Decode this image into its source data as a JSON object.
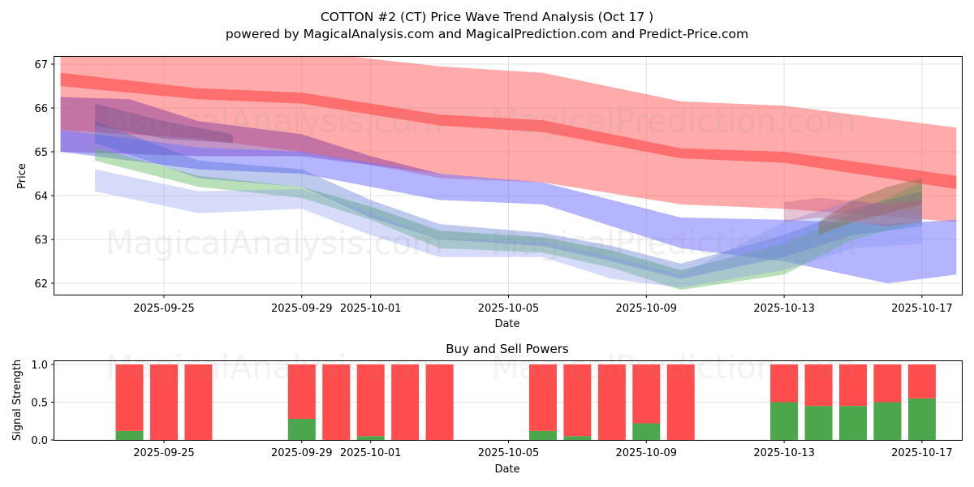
{
  "title": "COTTON #2 (CT) Price Wave Trend Analysis (Oct 17 )",
  "subtitle": "powered by MagicalAnalysis.com and MagicalPrediction.com and Predict-Price.com",
  "watermarks": [
    "MagicalAnalysis.com",
    "MagicalPrediction.com"
  ],
  "chart_data": [
    {
      "type": "area",
      "title": "",
      "xlabel": "Date",
      "ylabel": "Price",
      "ylim": [
        61.75,
        67.2
      ],
      "xlim": [
        "2025-09-21.7",
        "2025-10-18.2"
      ],
      "yticks": [
        62,
        63,
        64,
        65,
        66,
        67
      ],
      "xticks": [
        "2025-09-25",
        "2025-09-29",
        "2025-10-01",
        "2025-10-05",
        "2025-10-09",
        "2025-10-13",
        "2025-10-17"
      ],
      "grid": true,
      "bands": [
        {
          "name": "red-wide",
          "color": "#ff6666",
          "opacity": 0.55,
          "x": [
            "2025-09-22",
            "2025-09-26",
            "2025-09-29",
            "2025-10-03",
            "2025-10-06",
            "2025-10-10",
            "2025-10-13",
            "2025-10-18"
          ],
          "upper": [
            67.3,
            67.3,
            67.3,
            66.95,
            66.8,
            66.15,
            66.05,
            65.55
          ],
          "lower": [
            65.5,
            65.3,
            65.0,
            64.4,
            64.3,
            63.8,
            63.7,
            63.4
          ]
        },
        {
          "name": "red-center",
          "color": "#ff5555",
          "opacity": 0.7,
          "x": [
            "2025-09-22",
            "2025-09-26",
            "2025-09-29",
            "2025-10-03",
            "2025-10-06",
            "2025-10-10",
            "2025-10-13",
            "2025-10-18"
          ],
          "upper": [
            66.8,
            66.45,
            66.35,
            65.85,
            65.72,
            65.08,
            65.0,
            64.45
          ],
          "lower": [
            66.5,
            66.2,
            66.1,
            65.6,
            65.45,
            64.85,
            64.75,
            64.15
          ]
        },
        {
          "name": "purple",
          "color": "#9b4fa0",
          "opacity": 0.6,
          "x": [
            "2025-09-22",
            "2025-09-24",
            "2025-09-26",
            "2025-09-29",
            "2025-10-01",
            "2025-10-03"
          ],
          "upper": [
            66.25,
            66.2,
            65.7,
            65.4,
            64.9,
            64.5
          ],
          "lower": [
            65.0,
            64.95,
            64.9,
            64.9,
            64.7,
            64.5
          ]
        },
        {
          "name": "blue-wide",
          "color": "#7777ff",
          "opacity": 0.55,
          "x": [
            "2025-09-22",
            "2025-09-26",
            "2025-09-29",
            "2025-10-03",
            "2025-10-06",
            "2025-10-10",
            "2025-10-13",
            "2025-10-16",
            "2025-10-18"
          ],
          "upper": [
            65.5,
            65.1,
            65.0,
            64.5,
            64.3,
            63.5,
            63.45,
            63.35,
            63.45
          ],
          "lower": [
            65.0,
            64.6,
            64.5,
            63.9,
            63.8,
            62.8,
            62.5,
            62.0,
            62.2
          ]
        },
        {
          "name": "green-1",
          "color": "#66bb66",
          "opacity": 0.45,
          "x": [
            "2025-09-23",
            "2025-09-26",
            "2025-09-29",
            "2025-10-01",
            "2025-10-03",
            "2025-10-06",
            "2025-10-08",
            "2025-10-10",
            "2025-10-13",
            "2025-10-15",
            "2025-10-17"
          ],
          "upper": [
            65.1,
            64.45,
            64.2,
            63.75,
            63.2,
            63.05,
            62.75,
            62.3,
            62.9,
            63.6,
            64.3
          ],
          "lower": [
            64.8,
            64.2,
            63.95,
            63.45,
            62.8,
            62.7,
            62.35,
            61.85,
            62.2,
            63.0,
            63.4
          ]
        },
        {
          "name": "blue-2",
          "color": "#4466cc",
          "opacity": 0.35,
          "x": [
            "2025-09-23",
            "2025-09-26",
            "2025-09-29",
            "2025-10-01",
            "2025-10-03",
            "2025-10-06",
            "2025-10-08",
            "2025-10-10",
            "2025-10-13",
            "2025-10-15",
            "2025-10-17"
          ],
          "upper": [
            65.7,
            64.8,
            64.6,
            63.9,
            63.35,
            63.15,
            62.85,
            62.45,
            63.1,
            63.7,
            64.1
          ],
          "lower": [
            65.2,
            64.4,
            64.2,
            63.5,
            63.0,
            62.85,
            62.5,
            62.1,
            62.6,
            63.1,
            63.3
          ]
        },
        {
          "name": "blue-3",
          "color": "#8899ee",
          "opacity": 0.35,
          "x": [
            "2025-09-23",
            "2025-09-26",
            "2025-09-29",
            "2025-10-01",
            "2025-10-03",
            "2025-10-06",
            "2025-10-08",
            "2025-10-10",
            "2025-10-13",
            "2025-10-15",
            "2025-10-17"
          ],
          "upper": [
            64.6,
            64.1,
            64.15,
            63.6,
            63.0,
            62.95,
            62.6,
            62.2,
            63.4,
            63.9,
            63.6
          ],
          "lower": [
            64.1,
            63.6,
            63.7,
            63.1,
            62.6,
            62.6,
            62.1,
            61.9,
            62.3,
            62.8,
            62.9
          ]
        },
        {
          "name": "dark-purple",
          "color": "#7a4f8a",
          "opacity": 0.45,
          "x": [
            "2025-09-23",
            "2025-09-25",
            "2025-09-27"
          ],
          "upper": [
            66.1,
            65.7,
            65.4
          ],
          "lower": [
            65.6,
            65.3,
            65.2
          ]
        },
        {
          "name": "brown-tail",
          "color": "#8a6f4a",
          "opacity": 0.45,
          "x": [
            "2025-10-14",
            "2025-10-15",
            "2025-10-16",
            "2025-10-17"
          ],
          "upper": [
            63.4,
            63.9,
            64.2,
            64.4
          ],
          "lower": [
            63.1,
            63.4,
            63.6,
            63.8
          ]
        },
        {
          "name": "pink-tail",
          "color": "#bb5588",
          "opacity": 0.35,
          "x": [
            "2025-10-13",
            "2025-10-14",
            "2025-10-16",
            "2025-10-17"
          ],
          "upper": [
            63.85,
            63.95,
            63.8,
            63.9
          ],
          "lower": [
            63.4,
            63.5,
            63.3,
            63.4
          ]
        }
      ]
    },
    {
      "type": "bar",
      "title": "Buy and Sell Powers",
      "xlabel": "Date",
      "ylabel": "Signal Strength",
      "ylim": [
        0,
        1.05
      ],
      "yticks": [
        "0.0",
        "0.5",
        "1.0"
      ],
      "xticks": [
        "2025-09-25",
        "2025-09-29",
        "2025-10-01",
        "2025-10-05",
        "2025-10-09",
        "2025-10-13",
        "2025-10-17"
      ],
      "grid": true,
      "categories": [
        "2025-09-24",
        "2025-09-25",
        "2025-09-26",
        "2025-09-29",
        "2025-09-30",
        "2025-10-01",
        "2025-10-02",
        "2025-10-03",
        "2025-10-06",
        "2025-10-07",
        "2025-10-08",
        "2025-10-09",
        "2025-10-10",
        "2025-10-13",
        "2025-10-14",
        "2025-10-15",
        "2025-10-16",
        "2025-10-17"
      ],
      "series": [
        {
          "name": "Buy",
          "color": "#4ca64c",
          "values": [
            0.12,
            0.0,
            0.0,
            0.28,
            0.0,
            0.05,
            0.0,
            0.0,
            0.12,
            0.05,
            0.0,
            0.22,
            0.0,
            0.5,
            0.45,
            0.45,
            0.5,
            0.55
          ]
        },
        {
          "name": "Sell",
          "color": "#ff4c4c",
          "values": [
            0.88,
            1.0,
            1.0,
            0.72,
            1.0,
            0.95,
            1.0,
            1.0,
            0.88,
            0.95,
            1.0,
            0.78,
            1.0,
            0.5,
            0.55,
            0.55,
            0.5,
            0.45
          ]
        }
      ]
    }
  ]
}
